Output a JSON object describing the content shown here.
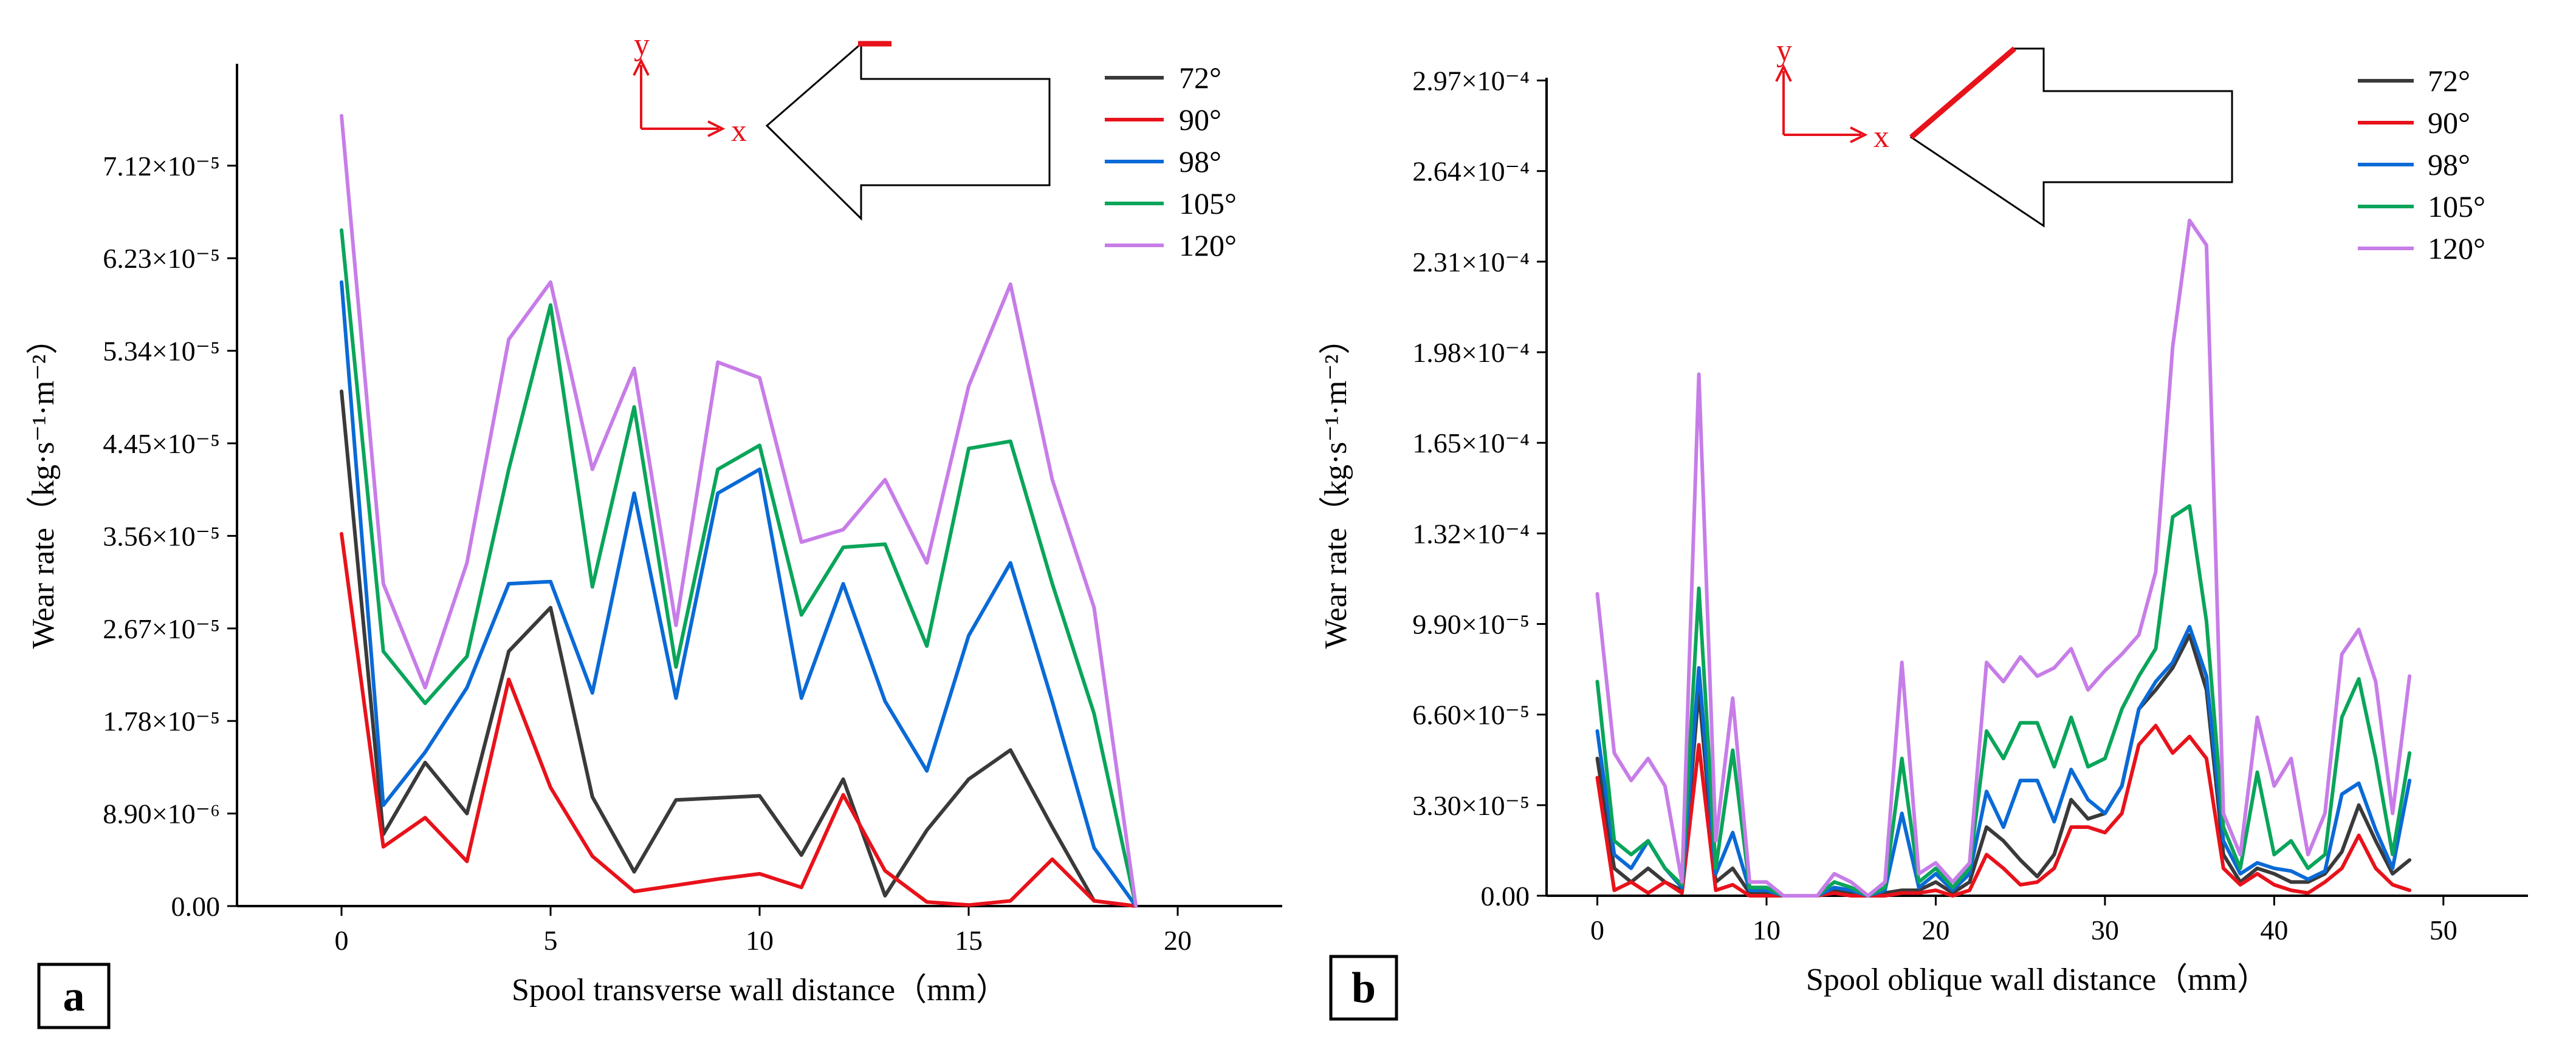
{
  "figure": {
    "colors": {
      "72°": "#3a3a3a",
      "90°": "#e8121b",
      "98°": "#0a6ad6",
      "105°": "#0aa55a",
      "120°": "#c77de8"
    }
  },
  "chart_data": [
    {
      "type": "line",
      "panel_label": "a",
      "title": "",
      "xlabel": "Spool transverse wall distance（mm）",
      "ylabel": "Wear rate（kg·s⁻¹·m⁻²）",
      "xlim": [
        -2.5,
        22.5
      ],
      "ylim": [
        0,
        8.1e-05
      ],
      "xticks": [
        0,
        5,
        10,
        15,
        20
      ],
      "xtick_labels": [
        "0",
        "5",
        "10",
        "15",
        "20"
      ],
      "yticks": [
        0,
        8.9e-06,
        1.78e-05,
        2.67e-05,
        3.56e-05,
        4.45e-05,
        5.34e-05,
        6.23e-05,
        7.12e-05
      ],
      "ytick_labels": [
        "0.00",
        "8.90×10⁻⁶",
        "1.78×10⁻⁵",
        "2.67×10⁻⁵",
        "3.56×10⁻⁵",
        "4.45×10⁻⁵",
        "5.34×10⁻⁵",
        "6.23×10⁻⁵",
        "7.12×10⁻⁵"
      ],
      "legend_position": "top-right",
      "x": [
        0,
        1,
        2,
        3,
        4,
        5,
        6,
        7,
        8,
        9,
        10,
        11,
        12,
        13,
        14,
        15,
        16,
        17,
        18,
        19
      ],
      "series": [
        {
          "name": "72°",
          "values": [
            4.95e-05,
            6.9e-06,
            1.38e-05,
            8.9e-06,
            2.45e-05,
            2.87e-05,
            1.05e-05,
            3.3e-06,
            1.02e-05,
            1.04e-05,
            1.06e-05,
            4.9e-06,
            1.22e-05,
            1e-06,
            7.3e-06,
            1.22e-05,
            1.5e-05,
            7.6e-06,
            5e-07,
            0
          ]
        },
        {
          "name": "90°",
          "values": [
            3.58e-05,
            5.7e-06,
            8.5e-06,
            4.3e-06,
            2.18e-05,
            1.14e-05,
            4.8e-06,
            1.4e-06,
            2e-06,
            2.6e-06,
            3.1e-06,
            1.8e-06,
            1.07e-05,
            3.4e-06,
            4e-07,
            1e-07,
            5e-07,
            4.5e-06,
            5e-07,
            0
          ]
        },
        {
          "name": "98°",
          "values": [
            6e-05,
            9.7e-06,
            1.48e-05,
            2.1e-05,
            3.1e-05,
            3.12e-05,
            2.05e-05,
            3.97e-05,
            2e-05,
            3.97e-05,
            4.2e-05,
            2e-05,
            3.1e-05,
            1.97e-05,
            1.3e-05,
            2.6e-05,
            3.3e-05,
            1.97e-05,
            5.6e-06,
            0
          ]
        },
        {
          "name": "105°",
          "values": [
            6.5e-05,
            2.45e-05,
            1.95e-05,
            2.4e-05,
            4.2e-05,
            5.78e-05,
            3.07e-05,
            4.8e-05,
            2.3e-05,
            4.2e-05,
            4.43e-05,
            2.8e-05,
            3.45e-05,
            3.48e-05,
            2.5e-05,
            4.4e-05,
            4.47e-05,
            3.1e-05,
            1.85e-05,
            0
          ]
        },
        {
          "name": "120°",
          "values": [
            7.6e-05,
            3.1e-05,
            2.1e-05,
            3.3e-05,
            5.45e-05,
            6e-05,
            4.2e-05,
            5.17e-05,
            2.7e-05,
            5.23e-05,
            5.08e-05,
            3.5e-05,
            3.62e-05,
            4.1e-05,
            3.3e-05,
            5e-05,
            5.98e-05,
            4.1e-05,
            2.87e-05,
            0
          ]
        }
      ],
      "inset": {
        "axis_x": "x",
        "axis_y": "y"
      }
    },
    {
      "type": "line",
      "panel_label": "b",
      "title": "",
      "xlabel": "Spool oblique wall distance（mm）",
      "ylabel": "Wear rate（kg·s⁻¹·m⁻²）",
      "xlim": [
        -3,
        55
      ],
      "ylim": [
        0,
        0.000298
      ],
      "xticks": [
        0,
        10,
        20,
        30,
        40,
        50
      ],
      "xtick_labels": [
        "0",
        "10",
        "20",
        "30",
        "40",
        "50"
      ],
      "yticks": [
        0,
        3.3e-05,
        6.6e-05,
        9.9e-05,
        0.000132,
        0.000165,
        0.000198,
        0.000231,
        0.000264,
        0.000297
      ],
      "ytick_labels": [
        "0.00",
        "3.30×10⁻⁵",
        "6.60×10⁻⁵",
        "9.90×10⁻⁵",
        "1.32×10⁻⁴",
        "1.65×10⁻⁴",
        "1.98×10⁻⁴",
        "2.31×10⁻⁴",
        "2.64×10⁻⁴",
        "2.97×10⁻⁴"
      ],
      "legend_position": "top-right",
      "x": [
        0,
        1,
        2,
        3,
        4,
        5,
        6,
        7,
        8,
        9,
        10,
        11,
        12,
        13,
        14,
        15,
        16,
        17,
        18,
        19,
        20,
        21,
        22,
        23,
        24,
        25,
        26,
        27,
        28,
        29,
        30,
        31,
        32,
        33,
        34,
        35,
        36,
        37,
        38,
        39,
        40,
        41,
        42,
        43,
        44,
        45,
        46,
        47,
        48
      ],
      "series": [
        {
          "name": "72°",
          "values": [
            5e-05,
            1e-05,
            5e-06,
            1e-05,
            5e-06,
            2e-06,
            7.5e-05,
            5e-06,
            1e-05,
            1e-06,
            1e-06,
            0,
            0,
            0,
            2e-06,
            1e-06,
            0,
            1e-06,
            2e-06,
            2e-06,
            5e-06,
            1e-06,
            5e-06,
            2.5e-05,
            2e-05,
            1.3e-05,
            7e-06,
            1.5e-05,
            3.5e-05,
            2.8e-05,
            3e-05,
            4e-05,
            6.8e-05,
            7.5e-05,
            8.3e-05,
            9.5e-05,
            7.5e-05,
            1.5e-05,
            5e-06,
            1e-05,
            8e-06,
            5e-06,
            5e-06,
            8e-06,
            1.6e-05,
            3.3e-05,
            2e-05,
            8e-06,
            1.3e-05
          ]
        },
        {
          "name": "90°",
          "values": [
            4.3e-05,
            2e-06,
            5e-06,
            1e-06,
            5e-06,
            1e-06,
            5.5e-05,
            2e-06,
            4e-06,
            0,
            0,
            0,
            0,
            0,
            1e-06,
            0,
            0,
            0,
            1e-06,
            1e-06,
            2e-06,
            0,
            2e-06,
            1.5e-05,
            1e-05,
            4e-06,
            5e-06,
            1e-05,
            2.5e-05,
            2.5e-05,
            2.3e-05,
            3e-05,
            5.5e-05,
            6.2e-05,
            5.2e-05,
            5.8e-05,
            5e-05,
            1e-05,
            4e-06,
            8e-06,
            4e-06,
            2e-06,
            1e-06,
            5e-06,
            1e-05,
            2.2e-05,
            1e-05,
            4e-06,
            2e-06
          ]
        },
        {
          "name": "98°",
          "values": [
            6e-05,
            1.5e-05,
            1e-05,
            2e-05,
            1e-05,
            3e-06,
            8.3e-05,
            8e-06,
            2.3e-05,
            2e-06,
            2e-06,
            0,
            0,
            0,
            3e-06,
            2e-06,
            0,
            2e-06,
            3e-05,
            3e-06,
            8e-06,
            2e-06,
            8e-06,
            3.8e-05,
            2.5e-05,
            4.2e-05,
            4.2e-05,
            2.7e-05,
            4.6e-05,
            3.5e-05,
            3e-05,
            4e-05,
            6.8e-05,
            7.8e-05,
            8.5e-05,
            9.8e-05,
            8e-05,
            2e-05,
            8e-06,
            1.2e-05,
            1e-05,
            9e-06,
            6e-06,
            9e-06,
            3.7e-05,
            4.1e-05,
            2.4e-05,
            1e-05,
            4.2e-05
          ]
        },
        {
          "name": "105°",
          "values": [
            7.8e-05,
            2e-05,
            1.5e-05,
            2e-05,
            1e-05,
            4e-06,
            0.000112,
            1e-05,
            5.3e-05,
            3e-06,
            3e-06,
            0,
            0,
            0,
            5e-06,
            3e-06,
            0,
            3e-06,
            5e-05,
            5e-06,
            1e-05,
            3e-06,
            1e-05,
            6e-05,
            5e-05,
            6.3e-05,
            6.3e-05,
            4.7e-05,
            6.5e-05,
            4.7e-05,
            5e-05,
            6.8e-05,
            8e-05,
            9e-05,
            0.000138,
            0.000142,
            0.0001,
            2.5e-05,
            1e-05,
            4.5e-05,
            1.5e-05,
            2e-05,
            1e-05,
            1.5e-05,
            6.5e-05,
            7.9e-05,
            5e-05,
            1.5e-05,
            5.2e-05
          ]
        },
        {
          "name": "120°",
          "values": [
            0.00011,
            5.2e-05,
            4.2e-05,
            5e-05,
            4e-05,
            5e-06,
            0.00019,
            2e-05,
            7.2e-05,
            5e-06,
            5e-06,
            0,
            0,
            0,
            8e-06,
            5e-06,
            0,
            5e-06,
            8.5e-05,
            8e-06,
            1.2e-05,
            5e-06,
            1.2e-05,
            8.5e-05,
            7.8e-05,
            8.7e-05,
            8e-05,
            8.3e-05,
            9e-05,
            7.5e-05,
            8.2e-05,
            8.8e-05,
            9.5e-05,
            0.000118,
            0.0002,
            0.000246,
            0.000237,
            3e-05,
            1.5e-05,
            6.5e-05,
            4e-05,
            5e-05,
            1.5e-05,
            3e-05,
            8.8e-05,
            9.7e-05,
            7.8e-05,
            3e-05,
            8e-05
          ]
        }
      ],
      "inset": {
        "axis_x": "x",
        "axis_y": "y"
      }
    }
  ]
}
